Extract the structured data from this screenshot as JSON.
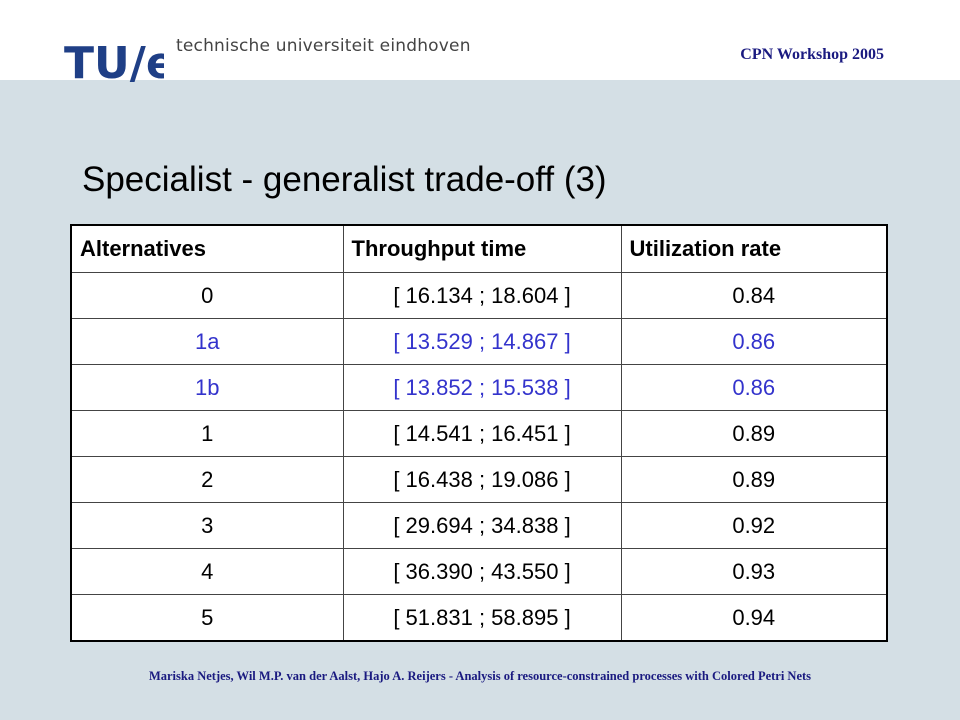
{
  "header": {
    "logo_text": "TU/e",
    "university": "technische universiteit eindhoven",
    "event": "CPN Workshop 2005"
  },
  "slide": {
    "title": "Specialist - generalist trade-off (3)"
  },
  "table": {
    "headers": [
      "Alternatives",
      "Throughput time",
      "Utilization rate"
    ],
    "rows": [
      {
        "alt": "0",
        "throughput": "[ 16.134 ; 18.604 ]",
        "utilization": "0.84",
        "highlight": false
      },
      {
        "alt": "1a",
        "throughput": "[ 13.529 ; 14.867 ]",
        "utilization": "0.86",
        "highlight": true
      },
      {
        "alt": "1b",
        "throughput": "[ 13.852 ; 15.538 ]",
        "utilization": "0.86",
        "highlight": true
      },
      {
        "alt": "1",
        "throughput": "[ 14.541 ; 16.451 ]",
        "utilization": "0.89",
        "highlight": false
      },
      {
        "alt": "2",
        "throughput": "[ 16.438 ; 19.086 ]",
        "utilization": "0.89",
        "highlight": false
      },
      {
        "alt": "3",
        "throughput": "[ 29.694 ; 34.838 ]",
        "utilization": "0.92",
        "highlight": false
      },
      {
        "alt": "4",
        "throughput": "[ 36.390 ; 43.550 ]",
        "utilization": "0.93",
        "highlight": false
      },
      {
        "alt": "5",
        "throughput": "[ 51.831 ; 58.895 ]",
        "utilization": "0.94",
        "highlight": false
      }
    ],
    "highlight_color": "#3333cc"
  },
  "footer": {
    "text": "Mariska Netjes, Wil M.P. van der Aalst, Hajo A. Reijers - Analysis of resource-constrained processes with Colored Petri Nets"
  }
}
